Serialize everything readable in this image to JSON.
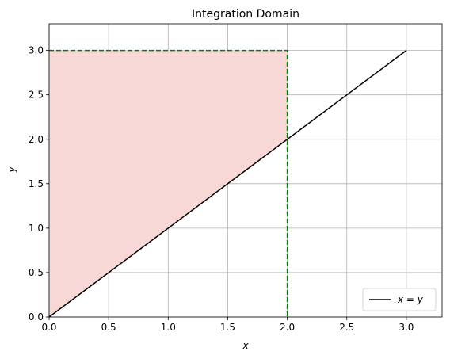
{
  "chart_data": {
    "type": "line",
    "title": "Integration Domain",
    "xlabel": "x",
    "ylabel": "y",
    "xlim": [
      0,
      3.3
    ],
    "ylim": [
      0,
      3.3
    ],
    "xticks": [
      "0.0",
      "0.5",
      "1.0",
      "1.5",
      "2.0",
      "2.5",
      "3.0"
    ],
    "yticks": [
      "0.0",
      "0.5",
      "1.0",
      "1.5",
      "2.0",
      "2.5",
      "3.0"
    ],
    "grid": true,
    "legend_position": "lower-right",
    "series": [
      {
        "name": "x = y",
        "x": [
          0,
          3
        ],
        "y": [
          0,
          3
        ],
        "color": "#000000",
        "style": "solid"
      }
    ],
    "shaded_region": {
      "vertices": [
        [
          0,
          0
        ],
        [
          2,
          2
        ],
        [
          2,
          3
        ],
        [
          0,
          3
        ]
      ],
      "color": "#f8d7d7"
    },
    "boundary": {
      "x": [
        0,
        2,
        2
      ],
      "y": [
        3,
        3,
        0
      ],
      "color": "#008000",
      "style": "dashed"
    }
  }
}
